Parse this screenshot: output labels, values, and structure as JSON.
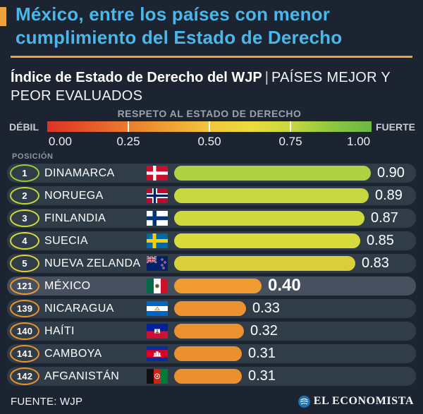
{
  "header": {
    "title": "México, entre los países con menor cumplimiento del Estado de Derecho",
    "title_color": "#4ab7ea",
    "accent_color": "#eda13f"
  },
  "subtitle": {
    "bold": "Índice de Estado de Derecho del WJP",
    "separator": "|",
    "rest": "PAÍSES MEJOR Y PEOR EVALUADOS"
  },
  "legend": {
    "title": "RESPETO AL ESTADO DE DERECHO",
    "weak_label": "DÉBIL",
    "strong_label": "FUERTE",
    "tick_labels": [
      "0.00",
      "0.25",
      "0.50",
      "0.75",
      "1.00"
    ],
    "gradient_colors": [
      "#dd3226",
      "#e4572a",
      "#ea7c2e",
      "#efa134",
      "#f2c63a",
      "#ecdc3c",
      "#c8d73f",
      "#8fc841",
      "#6ab844"
    ]
  },
  "position_header": "POSICIÓN",
  "rows": [
    {
      "position": "1",
      "country": "DINAMARCA",
      "flag": "dk",
      "value": 0.9,
      "value_str": "0.90",
      "bar_color": "#aed242",
      "badge_color": "#9dcb3e",
      "highlight": false
    },
    {
      "position": "2",
      "country": "NORUEGA",
      "flag": "no",
      "value": 0.89,
      "value_str": "0.89",
      "bar_color": "#c6d73f",
      "badge_color": "#c6d53c",
      "highlight": false
    },
    {
      "position": "3",
      "country": "FINLANDIA",
      "flag": "fi",
      "value": 0.87,
      "value_str": "0.87",
      "bar_color": "#cfd93d",
      "badge_color": "#d2d93b",
      "highlight": false
    },
    {
      "position": "4",
      "country": "SUECIA",
      "flag": "se",
      "value": 0.85,
      "value_str": "0.85",
      "bar_color": "#d7db3b",
      "badge_color": "#d8db3a",
      "highlight": false
    },
    {
      "position": "5",
      "country": "NUEVA ZELANDA",
      "flag": "nz",
      "value": 0.83,
      "value_str": "0.83",
      "bar_color": "#d9cf3c",
      "badge_color": "#dcd43a",
      "highlight": false
    },
    {
      "position": "121",
      "country": "MÉXICO",
      "flag": "mx",
      "value": 0.4,
      "value_str": "0.40",
      "bar_color": "#f09c31",
      "badge_color": "#ec9b33",
      "highlight": true
    },
    {
      "position": "139",
      "country": "NICARAGUA",
      "flag": "ni",
      "value": 0.33,
      "value_str": "0.33",
      "bar_color": "#ed9230",
      "badge_color": "#e9952e",
      "highlight": false
    },
    {
      "position": "140",
      "country": "HAÍTI",
      "flag": "ht",
      "value": 0.32,
      "value_str": "0.32",
      "bar_color": "#ec9130",
      "badge_color": "#e9952e",
      "highlight": false
    },
    {
      "position": "141",
      "country": "CAMBOYA",
      "flag": "kh",
      "value": 0.31,
      "value_str": "0.31",
      "bar_color": "#eb8f2f",
      "badge_color": "#e9952e",
      "highlight": false
    },
    {
      "position": "142",
      "country": "AFGANISTÁN",
      "flag": "af",
      "value": 0.31,
      "value_str": "0.31",
      "bar_color": "#eb8f2f",
      "badge_color": "#e9952e",
      "highlight": false
    }
  ],
  "footer": {
    "source": "FUENTE: WJP",
    "brand": "EL ECONOMISTA",
    "brand_color": "#1a72b8"
  },
  "chart_data": {
    "type": "bar",
    "orientation": "horizontal",
    "title": "Índice de Estado de Derecho del WJP | Países mejor y peor evaluados",
    "subtitle": "México, entre los países con menor cumplimiento del Estado de Derecho",
    "categories": [
      "Dinamarca",
      "Noruega",
      "Finlandia",
      "Suecia",
      "Nueva Zelanda",
      "México",
      "Nicaragua",
      "Haití",
      "Camboya",
      "Afganistán"
    ],
    "ranks": [
      1,
      2,
      3,
      4,
      5,
      121,
      139,
      140,
      141,
      142
    ],
    "values": [
      0.9,
      0.89,
      0.87,
      0.85,
      0.83,
      0.4,
      0.33,
      0.32,
      0.31,
      0.31
    ],
    "xlabel": "Respeto al Estado de Derecho",
    "xlim": [
      0,
      1
    ],
    "x_ticks": [
      0.0,
      0.25,
      0.5,
      0.75,
      1.0
    ],
    "scale_endpoints": [
      "Débil",
      "Fuerte"
    ],
    "legend_position": "top",
    "grid": false,
    "source": "WJP"
  }
}
